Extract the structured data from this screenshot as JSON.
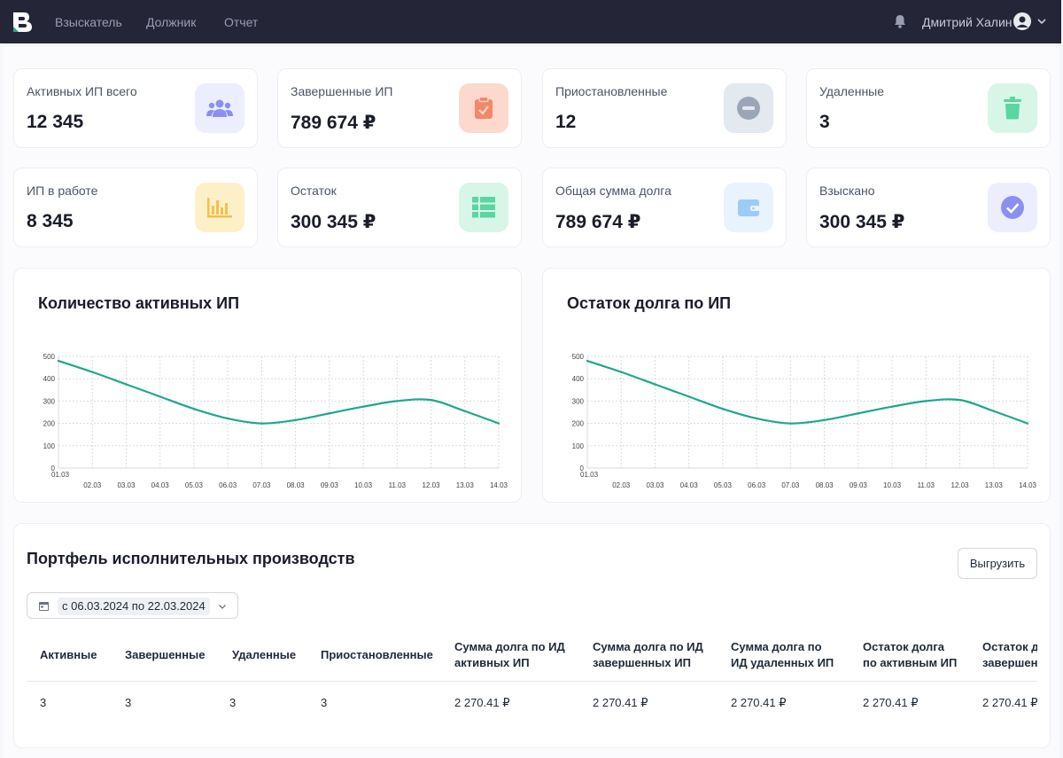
{
  "nav": {
    "items": [
      {
        "label": "Взыскатель",
        "active": false
      },
      {
        "label": "Должник",
        "active": false
      },
      {
        "label": "Отчет",
        "active": true
      }
    ],
    "user_name": "Дмитрий Халин"
  },
  "stats": [
    {
      "label": "Активных ИП всего",
      "value": "12 345",
      "icon": "users-icon",
      "color": "#8b8ff0"
    },
    {
      "label": "Завершенные ИП",
      "value": "789 674 ₽",
      "icon": "clipboard-check-icon",
      "color": "#f08a6a"
    },
    {
      "label": "Приостановленные",
      "value": "12",
      "icon": "minus-circle-icon",
      "color": "#9aa6b8"
    },
    {
      "label": "Удаленные",
      "value": "3",
      "icon": "trash-icon",
      "color": "#5ad6a0"
    },
    {
      "label": "ИП в работе",
      "value": "8 345",
      "icon": "bar-chart-icon",
      "color": "#f2c14e"
    },
    {
      "label": "Остаток",
      "value": "300 345 ₽",
      "icon": "table-icon",
      "color": "#5ad6a0"
    },
    {
      "label": "Общая сумма долга",
      "value": "789 674 ₽",
      "icon": "wallet-icon",
      "color": "#9ccbf5"
    },
    {
      "label": "Взыскано",
      "value": "300 345 ₽",
      "icon": "check-circle-icon",
      "color": "#8b8ff0"
    }
  ],
  "charts": {
    "left_title": "Количество активных ИП",
    "right_title": "Остаток долга по ИП"
  },
  "chart_data": [
    {
      "type": "line",
      "title": "Количество активных ИП",
      "categories": [
        "01.03",
        "02.03",
        "03.03",
        "04.03",
        "05.03",
        "06.03",
        "07.03",
        "08.03",
        "09.03",
        "10.03",
        "11.03",
        "12.03",
        "13.03",
        "14.03"
      ],
      "values": [
        480,
        430,
        375,
        320,
        265,
        222,
        200,
        215,
        245,
        275,
        300,
        305,
        255,
        200
      ],
      "ylim": [
        0,
        500
      ],
      "yticks": [
        0,
        100,
        200,
        300,
        400,
        500
      ],
      "grid": true,
      "line_color": "#1ea88c"
    },
    {
      "type": "line",
      "title": "Остаток долга по ИП",
      "categories": [
        "01.03",
        "02.03",
        "03.03",
        "04.03",
        "05.03",
        "06.03",
        "07.03",
        "08.03",
        "09.03",
        "10.03",
        "11.03",
        "12.03",
        "13.03",
        "14.03"
      ],
      "values": [
        480,
        430,
        375,
        320,
        265,
        222,
        200,
        215,
        245,
        275,
        300,
        305,
        255,
        200
      ],
      "ylim": [
        0,
        500
      ],
      "yticks": [
        0,
        100,
        200,
        300,
        400,
        500
      ],
      "grid": true,
      "line_color": "#1ea88c"
    }
  ],
  "portfolio": {
    "title": "Портфель исполнительных производств",
    "export_label": "Выгрузить",
    "date_range": "с 06.03.2024 по 22.03.2024",
    "columns": [
      [
        "Активные"
      ],
      [
        "Завершенные"
      ],
      [
        "Удаленные"
      ],
      [
        "Приостановленные"
      ],
      [
        "Сумма долга по ИД",
        "активных ИП"
      ],
      [
        "Сумма долга по ИД",
        "завершенных ИП"
      ],
      [
        "Сумма долга по",
        "ИД удаленных ИП"
      ],
      [
        "Остаток долга",
        "по активным ИП"
      ],
      [
        "Остаток долга по",
        "завершенным ИП"
      ]
    ],
    "row": [
      "3",
      "3",
      "3",
      "3",
      "2 270.41 ₽",
      "2 270.41 ₽",
      "2 270.41 ₽",
      "2 270.41 ₽",
      "2 270.41 ₽"
    ]
  }
}
